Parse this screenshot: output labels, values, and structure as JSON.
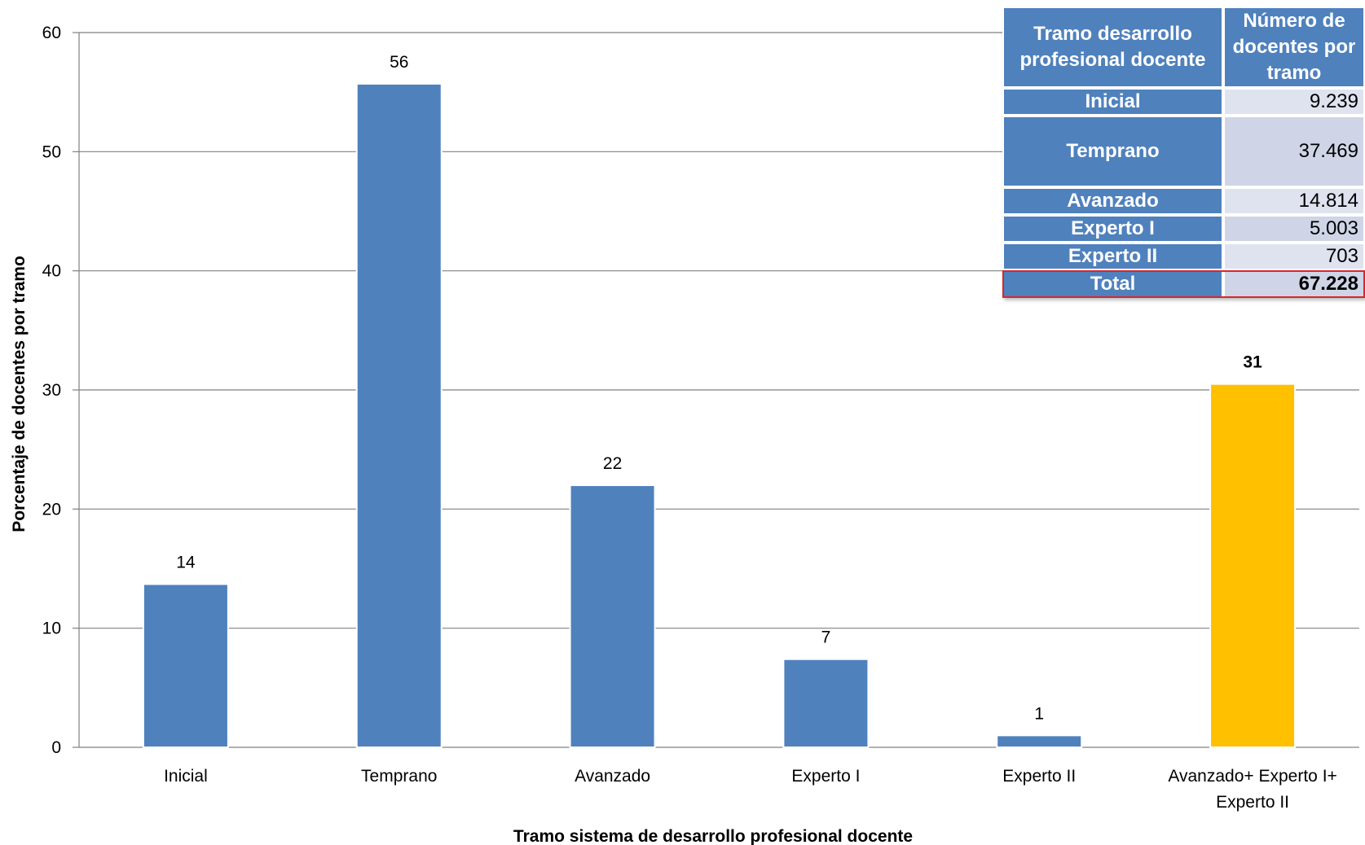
{
  "chart_data": {
    "type": "bar",
    "categories": [
      "Inicial",
      "Temprano",
      "Avanzado",
      "Experto I",
      "Experto II",
      "Avanzado+ Experto I+ Experto II"
    ],
    "category_lines": [
      [
        "Inicial"
      ],
      [
        "Temprano"
      ],
      [
        "Avanzado"
      ],
      [
        "Experto I"
      ],
      [
        "Experto II"
      ],
      [
        "Avanzado+ Experto I+",
        "Experto II"
      ]
    ],
    "values": [
      13.7,
      55.7,
      22.0,
      7.4,
      1.0,
      30.5
    ],
    "data_labels": [
      "14",
      "56",
      "22",
      "7",
      "1",
      "31"
    ],
    "bar_colors": [
      "#4f81bd",
      "#4f81bd",
      "#4f81bd",
      "#4f81bd",
      "#4f81bd",
      "#ffc000"
    ],
    "bold_labels": [
      false,
      false,
      false,
      false,
      false,
      true
    ],
    "xlabel": "Tramo sistema de desarrollo profesional docente",
    "ylabel": "Porcentaje de docentes por tramo",
    "ylim": [
      0,
      60
    ],
    "yticks": [
      0,
      10,
      20,
      30,
      40,
      50,
      60
    ],
    "grid": true,
    "gridline_color": "#808080"
  },
  "inset_table": {
    "header": {
      "col1": "Tramo desarrollo profesional docente",
      "col2": "Número de docentes por tramo"
    },
    "rows": [
      {
        "tramo": "Inicial",
        "count": "9.239"
      },
      {
        "tramo": "Temprano",
        "count": "37.469"
      },
      {
        "tramo": "Avanzado",
        "count": "14.814"
      },
      {
        "tramo": "Experto I",
        "count": "5.003"
      },
      {
        "tramo": "Experto II",
        "count": "703"
      },
      {
        "tramo": "Total",
        "count": "67.228"
      }
    ],
    "total_outline_color": "#d9262b"
  }
}
